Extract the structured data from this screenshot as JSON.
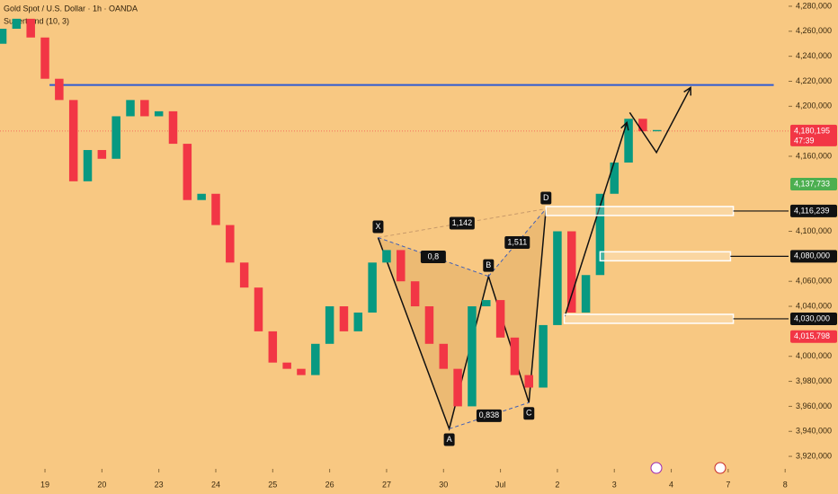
{
  "chart_data": {
    "type": "candlestick",
    "title": "Gold Spot / U.S. Dollar · 1h · OANDA",
    "indicator": "Supertrend (10, 3)",
    "xlim": [
      -0.79,
      13.06
    ],
    "ylim": [
      3910000,
      4285000
    ],
    "xticks": [
      {
        "value": 0,
        "label": "19"
      },
      {
        "value": 1,
        "label": "20"
      },
      {
        "value": 2,
        "label": "23"
      },
      {
        "value": 3,
        "label": "24"
      },
      {
        "value": 4,
        "label": "25"
      },
      {
        "value": 5,
        "label": "26"
      },
      {
        "value": 6,
        "label": "27"
      },
      {
        "value": 7,
        "label": "30"
      },
      {
        "value": 8,
        "label": "Jul"
      },
      {
        "value": 9,
        "label": "2"
      },
      {
        "value": 10,
        "label": "3"
      },
      {
        "value": 11,
        "label": "4"
      },
      {
        "value": 12,
        "label": "7"
      },
      {
        "value": 13,
        "label": "8"
      }
    ],
    "yticks": [
      {
        "value": 3920000,
        "label": "3,920,000"
      },
      {
        "value": 3940000,
        "label": "3,940,000"
      },
      {
        "value": 3960000,
        "label": "3,960,000"
      },
      {
        "value": 3980000,
        "label": "3,980,000"
      },
      {
        "value": 4000000,
        "label": "4,000,000"
      },
      {
        "value": 4040000,
        "label": "4,040,000"
      },
      {
        "value": 4060000,
        "label": "4,060,000"
      },
      {
        "value": 4100000,
        "label": "4,100,000"
      },
      {
        "value": 4160000,
        "label": "4,160,000"
      },
      {
        "value": 4200000,
        "label": "4,200,000"
      },
      {
        "value": 4220000,
        "label": "4,220,000"
      },
      {
        "value": 4240000,
        "label": "4,240,000"
      },
      {
        "value": 4260000,
        "label": "4,260,000"
      },
      {
        "value": 4280000,
        "label": "4,280,000"
      }
    ],
    "up_color": "#089981",
    "down_color": "#f23645",
    "candles": {
      "x": [
        -0.75,
        -0.5,
        -0.25,
        0,
        0.25,
        0.5,
        0.75,
        1,
        1.25,
        1.5,
        1.75,
        2,
        2.25,
        2.5,
        2.75,
        3,
        3.25,
        3.5,
        3.75,
        4,
        4.25,
        4.5,
        4.75,
        5,
        5.25,
        5.5,
        5.75,
        6,
        6.25,
        6.5,
        6.75,
        7,
        7.25,
        7.5,
        7.75,
        8,
        8.25,
        8.5,
        8.75,
        9,
        9.25,
        9.5,
        9.75,
        10,
        10.25,
        10.5,
        10.75
      ],
      "open": [
        4250000,
        4262000,
        4270000,
        4255000,
        4222000,
        4205000,
        4140000,
        4165000,
        4158000,
        4192000,
        4205000,
        4192000,
        4196000,
        4170000,
        4125000,
        4130000,
        4105000,
        4075000,
        4055000,
        4020000,
        3995000,
        3990000,
        3985000,
        4010000,
        4040000,
        4020000,
        4035000,
        4075000,
        4085000,
        4060000,
        4040000,
        4010000,
        3990000,
        3960000,
        4040000,
        4045000,
        4015000,
        3985000,
        3975000,
        4025000,
        4100000,
        4035000,
        4065000,
        4130000,
        4155000,
        4190000,
        4180000
      ],
      "close": [
        4262000,
        4270000,
        4255000,
        4222000,
        4205000,
        4140000,
        4165000,
        4158000,
        4192000,
        4205000,
        4192000,
        4196000,
        4170000,
        4125000,
        4130000,
        4105000,
        4075000,
        4055000,
        4020000,
        3995000,
        3990000,
        3985000,
        4010000,
        4040000,
        4020000,
        4035000,
        4075000,
        4085000,
        4060000,
        4040000,
        4010000,
        3990000,
        3960000,
        4040000,
        4045000,
        4015000,
        3985000,
        3975000,
        4025000,
        4100000,
        4035000,
        4065000,
        4130000,
        4155000,
        4190000,
        4180000,
        4181000
      ]
    },
    "resistance_line": {
      "value": 4217000,
      "x": [
        0.08,
        12.8
      ],
      "color": "#2f5bd3"
    },
    "pattern": {
      "points": [
        "X",
        "A",
        "B",
        "C",
        "D"
      ],
      "x": [
        5.85,
        7.1,
        7.79,
        8.5,
        8.8
      ],
      "y": [
        4095000,
        3942000,
        4064000,
        3963000,
        4118000
      ],
      "ratios": [
        "1,142",
        "0,8",
        "1,511",
        "0,838"
      ]
    },
    "projection": [
      {
        "x": [
          9.13,
          10.22
        ],
        "y": [
          4032000,
          4187000
        ]
      },
      {
        "x": [
          10.27,
          10.74,
          11.34
        ],
        "y": [
          4195000,
          4163000,
          4215000
        ]
      }
    ],
    "levels": [
      {
        "value": 4116239,
        "label": "4,116,239",
        "x": [
          8.8,
          12.09
        ]
      },
      {
        "value": 4080000,
        "label": "4,080,000",
        "x": [
          9.75,
          12.04
        ]
      },
      {
        "value": 4030000,
        "label": "4,030,000",
        "x": [
          9.12,
          12.09
        ]
      }
    ],
    "price_labels": [
      {
        "value": 4180195,
        "label": "4,180,195",
        "sub": "47:39",
        "color": "#f23645"
      },
      {
        "value": 4137733,
        "label": "4,137,733",
        "color": "#4caf50"
      },
      {
        "value": 4015798,
        "label": "4,015,798",
        "color": "#f23645"
      }
    ]
  }
}
